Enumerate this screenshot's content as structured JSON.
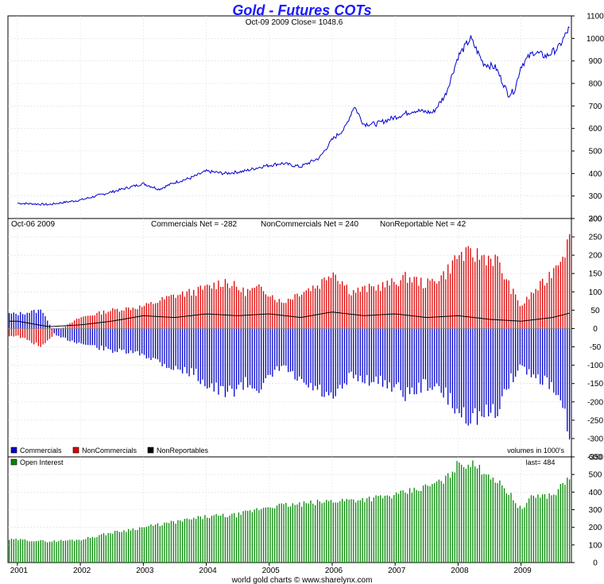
{
  "chart_data": [
    {
      "type": "line",
      "title": "Gold - Futures COTs",
      "subtitle": "Oct-09  2009   Close= 1048.6",
      "ylim": [
        200,
        1100
      ],
      "yticks": [
        200,
        300,
        400,
        500,
        600,
        700,
        800,
        900,
        1000,
        1100
      ],
      "series": [
        {
          "color": "#0000cc",
          "x": [
            2001.0,
            2001.5,
            2002.0,
            2002.5,
            2003.0,
            2003.25,
            2003.5,
            2003.75,
            2004.0,
            2004.3,
            2004.6,
            2004.9,
            2005.2,
            2005.5,
            2005.8,
            2006.0,
            2006.2,
            2006.35,
            2006.5,
            2006.7,
            2007.0,
            2007.3,
            2007.6,
            2007.8,
            2008.0,
            2008.2,
            2008.4,
            2008.6,
            2008.8,
            2008.9,
            2009.0,
            2009.2,
            2009.4,
            2009.6,
            2009.77
          ],
          "values": [
            268,
            262,
            282,
            318,
            355,
            330,
            360,
            380,
            410,
            400,
            410,
            432,
            445,
            430,
            470,
            550,
            600,
            700,
            620,
            620,
            650,
            680,
            670,
            750,
            920,
            1000,
            890,
            870,
            750,
            770,
            880,
            940,
            920,
            960,
            1048.6
          ]
        }
      ]
    },
    {
      "type": "bar",
      "annotation_left": "Oct-06  2009",
      "annotations": [
        "Commercials Net = -282",
        "NonCommercials Net = 240",
        "NonReportable Net = 42"
      ],
      "ylim": [
        -350,
        300
      ],
      "yticks": [
        -350,
        -300,
        -250,
        -200,
        -150,
        -100,
        -50,
        0,
        50,
        100,
        150,
        200,
        250,
        300
      ],
      "legend": [
        "Commercials",
        "NonCommercials",
        "NonReportables"
      ],
      "units_note": "volumes in 1000's",
      "series": [
        {
          "name": "Commercials",
          "color": "#0000cc",
          "x": [
            2001.0,
            2001.4,
            2001.6,
            2002.0,
            2002.5,
            2003.0,
            2003.5,
            2003.8,
            2004.0,
            2004.3,
            2004.6,
            2004.9,
            2005.2,
            2005.5,
            2005.8,
            2006.0,
            2006.3,
            2006.6,
            2006.9,
            2007.2,
            2007.5,
            2007.8,
            2008.0,
            2008.3,
            2008.6,
            2008.8,
            2009.0,
            2009.2,
            2009.4,
            2009.6,
            2009.77
          ],
          "values": [
            40,
            50,
            -20,
            -40,
            -60,
            -70,
            -110,
            -120,
            -150,
            -180,
            -150,
            -160,
            -100,
            -150,
            -170,
            -200,
            -130,
            -140,
            -150,
            -180,
            -150,
            -180,
            -230,
            -240,
            -230,
            -150,
            -100,
            -130,
            -140,
            -200,
            -282
          ]
        },
        {
          "name": "NonCommercials",
          "color": "#dd0000",
          "x": [
            2001.0,
            2001.4,
            2001.6,
            2002.0,
            2002.5,
            2003.0,
            2003.5,
            2003.8,
            2004.0,
            2004.3,
            2004.6,
            2004.9,
            2005.2,
            2005.5,
            2005.8,
            2006.0,
            2006.3,
            2006.6,
            2006.9,
            2007.2,
            2007.5,
            2007.8,
            2008.0,
            2008.3,
            2008.6,
            2008.8,
            2009.0,
            2009.2,
            2009.4,
            2009.6,
            2009.77
          ],
          "values": [
            -20,
            -50,
            -10,
            30,
            50,
            60,
            90,
            100,
            110,
            130,
            100,
            110,
            70,
            100,
            120,
            160,
            100,
            110,
            120,
            140,
            120,
            150,
            200,
            200,
            190,
            120,
            60,
            100,
            130,
            190,
            240
          ]
        },
        {
          "name": "NonReportables",
          "color": "#000000",
          "x": [
            2001.0,
            2001.5,
            2002.0,
            2002.5,
            2003.0,
            2003.5,
            2004.0,
            2004.5,
            2005.0,
            2005.5,
            2006.0,
            2006.5,
            2007.0,
            2007.5,
            2008.0,
            2008.5,
            2009.0,
            2009.5,
            2009.77
          ],
          "values": [
            20,
            5,
            10,
            20,
            35,
            30,
            40,
            35,
            40,
            30,
            45,
            35,
            40,
            30,
            35,
            25,
            20,
            30,
            42
          ]
        }
      ]
    },
    {
      "type": "bar",
      "legend": [
        "Open Interest"
      ],
      "annotation": "last= 484",
      "ylim": [
        0,
        600
      ],
      "yticks": [
        0,
        100,
        200,
        300,
        400,
        500,
        600
      ],
      "series": [
        {
          "name": "Open Interest",
          "color": "#008800",
          "x": [
            2001.0,
            2001.5,
            2002.0,
            2002.5,
            2003.0,
            2003.5,
            2004.0,
            2004.5,
            2005.0,
            2005.5,
            2006.0,
            2006.5,
            2007.0,
            2007.5,
            2007.8,
            2008.0,
            2008.2,
            2008.5,
            2008.8,
            2009.0,
            2009.2,
            2009.5,
            2009.77
          ],
          "values": [
            130,
            120,
            130,
            170,
            200,
            230,
            260,
            270,
            320,
            330,
            350,
            360,
            380,
            430,
            470,
            560,
            560,
            500,
            400,
            300,
            380,
            380,
            484
          ]
        }
      ]
    }
  ],
  "x_axis": {
    "ticks": [
      "2001",
      "2002",
      "2003",
      "2004",
      "2005",
      "2006",
      "2007",
      "2008",
      "2009"
    ],
    "range": [
      2000.85,
      2009.8
    ]
  },
  "footer": "world gold charts © www.sharelynx.com"
}
